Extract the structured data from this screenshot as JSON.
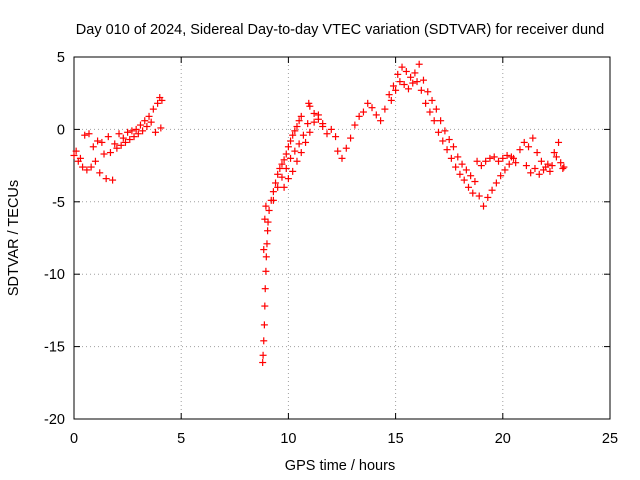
{
  "chart_data": {
    "type": "scatter",
    "title": "Day 010 of 2024, Sidereal Day-to-day VTEC variation (SDTVAR) for receiver dund",
    "xlabel": "GPS time / hours",
    "ylabel": "SDTVAR / TECUs",
    "xlim": [
      0,
      25
    ],
    "ylim": [
      -20,
      5
    ],
    "xticks": [
      0,
      5,
      10,
      15,
      20,
      25
    ],
    "yticks": [
      -20,
      -15,
      -10,
      -5,
      0,
      5
    ],
    "xtick_labels": [
      "0",
      "5",
      "10",
      "15",
      "20",
      "25"
    ],
    "ytick_labels": [
      "-20",
      "-15",
      "-10",
      "-5",
      "0",
      "5"
    ],
    "grid": true,
    "marker": "plus",
    "color": "#ff0000",
    "series": [
      {
        "name": "SDTVAR",
        "points": [
          [
            0.0,
            -1.8
          ],
          [
            0.1,
            -1.5
          ],
          [
            0.2,
            -2.2
          ],
          [
            0.3,
            -2.0
          ],
          [
            0.4,
            -2.6
          ],
          [
            0.5,
            -0.4
          ],
          [
            0.6,
            -2.8
          ],
          [
            0.7,
            -0.3
          ],
          [
            0.8,
            -2.6
          ],
          [
            0.9,
            -1.2
          ],
          [
            1.0,
            -2.2
          ],
          [
            1.1,
            -0.8
          ],
          [
            1.2,
            -3.0
          ],
          [
            1.3,
            -0.9
          ],
          [
            1.4,
            -1.7
          ],
          [
            1.5,
            -3.4
          ],
          [
            1.6,
            -0.5
          ],
          [
            1.7,
            -1.6
          ],
          [
            1.8,
            -3.5
          ],
          [
            1.9,
            -1.0
          ],
          [
            2.0,
            -1.3
          ],
          [
            2.1,
            -0.3
          ],
          [
            2.2,
            -1.1
          ],
          [
            2.3,
            -0.6
          ],
          [
            2.4,
            -0.9
          ],
          [
            2.5,
            -0.2
          ],
          [
            2.6,
            -0.7
          ],
          [
            2.7,
            -0.1
          ],
          [
            2.8,
            -0.5
          ],
          [
            2.9,
            0.0
          ],
          [
            3.0,
            -0.3
          ],
          [
            3.1,
            0.3
          ],
          [
            3.2,
            -0.1
          ],
          [
            3.3,
            0.6
          ],
          [
            3.4,
            0.2
          ],
          [
            3.5,
            0.9
          ],
          [
            3.6,
            0.5
          ],
          [
            3.7,
            1.4
          ],
          [
            3.8,
            -0.2
          ],
          [
            3.9,
            1.8
          ],
          [
            4.0,
            2.2
          ],
          [
            4.05,
            0.1
          ],
          [
            4.1,
            2.0
          ],
          [
            8.8,
            -16.1
          ],
          [
            8.82,
            -15.6
          ],
          [
            8.85,
            -14.6
          ],
          [
            8.88,
            -13.5
          ],
          [
            8.9,
            -12.2
          ],
          [
            8.92,
            -11.0
          ],
          [
            8.95,
            -9.8
          ],
          [
            8.97,
            -8.8
          ],
          [
            9.0,
            -7.9
          ],
          [
            9.03,
            -7.0
          ],
          [
            8.85,
            -8.3
          ],
          [
            8.9,
            -6.2
          ],
          [
            8.95,
            -5.3
          ],
          [
            9.05,
            -6.4
          ],
          [
            9.1,
            -5.6
          ],
          [
            9.2,
            -4.9
          ],
          [
            9.3,
            -4.3
          ],
          [
            9.4,
            -3.7
          ],
          [
            9.5,
            -3.1
          ],
          [
            9.6,
            -2.7
          ],
          [
            9.7,
            -2.4
          ],
          [
            9.8,
            -2.1
          ],
          [
            9.9,
            -1.7
          ],
          [
            10.0,
            -1.2
          ],
          [
            10.1,
            -0.8
          ],
          [
            10.2,
            -0.4
          ],
          [
            10.3,
            -0.1
          ],
          [
            10.4,
            0.2
          ],
          [
            10.5,
            0.6
          ],
          [
            10.6,
            0.9
          ],
          [
            9.3,
            -4.9
          ],
          [
            9.5,
            -4.0
          ],
          [
            9.7,
            -3.3
          ],
          [
            9.9,
            -2.7
          ],
          [
            10.1,
            -2.0
          ],
          [
            10.3,
            -1.5
          ],
          [
            10.5,
            -1.0
          ],
          [
            10.7,
            -0.4
          ],
          [
            10.9,
            0.4
          ],
          [
            10.95,
            1.8
          ],
          [
            9.8,
            -4.0
          ],
          [
            10.0,
            -3.4
          ],
          [
            10.2,
            -2.9
          ],
          [
            10.4,
            -2.2
          ],
          [
            10.6,
            -1.6
          ],
          [
            10.8,
            -0.9
          ],
          [
            11.0,
            -0.2
          ],
          [
            11.2,
            0.5
          ],
          [
            11.4,
            1.0
          ],
          [
            11.6,
            0.4
          ],
          [
            11.0,
            1.6
          ],
          [
            11.2,
            1.1
          ],
          [
            11.4,
            0.7
          ],
          [
            11.6,
            0.2
          ],
          [
            11.8,
            -0.3
          ],
          [
            12.0,
            0.0
          ],
          [
            12.2,
            -0.5
          ],
          [
            12.3,
            -1.5
          ],
          [
            12.5,
            -2.0
          ],
          [
            12.7,
            -1.3
          ],
          [
            12.9,
            -0.6
          ],
          [
            13.1,
            0.3
          ],
          [
            13.3,
            0.9
          ],
          [
            13.5,
            1.2
          ],
          [
            13.7,
            1.8
          ],
          [
            13.9,
            1.5
          ],
          [
            14.1,
            1.0
          ],
          [
            14.3,
            0.6
          ],
          [
            14.5,
            1.4
          ],
          [
            14.7,
            2.4
          ],
          [
            14.9,
            3.0
          ],
          [
            15.1,
            3.8
          ],
          [
            15.3,
            4.3
          ],
          [
            15.5,
            4.0
          ],
          [
            15.7,
            3.6
          ],
          [
            15.9,
            3.9
          ],
          [
            16.1,
            4.5
          ],
          [
            16.3,
            3.4
          ],
          [
            16.5,
            2.6
          ],
          [
            16.7,
            2.0
          ],
          [
            14.8,
            2.0
          ],
          [
            15.0,
            2.7
          ],
          [
            15.2,
            3.3
          ],
          [
            15.4,
            3.1
          ],
          [
            15.6,
            2.8
          ],
          [
            15.8,
            3.2
          ],
          [
            16.0,
            3.3
          ],
          [
            16.2,
            2.7
          ],
          [
            16.4,
            1.8
          ],
          [
            16.6,
            1.2
          ],
          [
            16.8,
            0.6
          ],
          [
            17.0,
            -0.2
          ],
          [
            17.2,
            -0.8
          ],
          [
            17.4,
            -1.4
          ],
          [
            17.6,
            -2.0
          ],
          [
            17.8,
            -2.6
          ],
          [
            18.0,
            -3.1
          ],
          [
            18.2,
            -3.5
          ],
          [
            18.4,
            -4.0
          ],
          [
            18.6,
            -4.4
          ],
          [
            16.9,
            1.4
          ],
          [
            17.1,
            0.6
          ],
          [
            17.3,
            -0.1
          ],
          [
            17.5,
            -0.7
          ],
          [
            17.7,
            -1.2
          ],
          [
            17.9,
            -1.9
          ],
          [
            18.1,
            -2.4
          ],
          [
            18.3,
            -2.8
          ],
          [
            18.5,
            -3.2
          ],
          [
            18.7,
            -3.6
          ],
          [
            18.9,
            -4.6
          ],
          [
            19.1,
            -5.3
          ],
          [
            19.3,
            -4.7
          ],
          [
            19.5,
            -4.2
          ],
          [
            19.7,
            -3.7
          ],
          [
            19.9,
            -3.2
          ],
          [
            20.1,
            -2.8
          ],
          [
            20.3,
            -2.4
          ],
          [
            20.5,
            -2.0
          ],
          [
            18.8,
            -2.2
          ],
          [
            19.0,
            -2.5
          ],
          [
            19.2,
            -2.2
          ],
          [
            19.4,
            -2.0
          ],
          [
            19.6,
            -1.9
          ],
          [
            19.8,
            -2.2
          ],
          [
            20.0,
            -2.0
          ],
          [
            20.2,
            -1.8
          ],
          [
            20.4,
            -1.9
          ],
          [
            20.6,
            -2.3
          ],
          [
            20.8,
            -1.4
          ],
          [
            21.0,
            -0.9
          ],
          [
            21.2,
            -1.2
          ],
          [
            21.4,
            -0.6
          ],
          [
            21.6,
            -1.6
          ],
          [
            21.8,
            -2.2
          ],
          [
            22.0,
            -2.6
          ],
          [
            22.2,
            -2.9
          ],
          [
            22.4,
            -1.6
          ],
          [
            22.6,
            -0.9
          ],
          [
            22.8,
            -2.7
          ],
          [
            21.1,
            -2.5
          ],
          [
            21.3,
            -3.0
          ],
          [
            21.5,
            -2.7
          ],
          [
            21.7,
            -3.1
          ],
          [
            21.9,
            -2.8
          ],
          [
            22.1,
            -2.4
          ],
          [
            22.3,
            -2.5
          ],
          [
            22.5,
            -1.9
          ],
          [
            22.7,
            -2.3
          ],
          [
            22.85,
            -2.6
          ]
        ]
      }
    ]
  }
}
